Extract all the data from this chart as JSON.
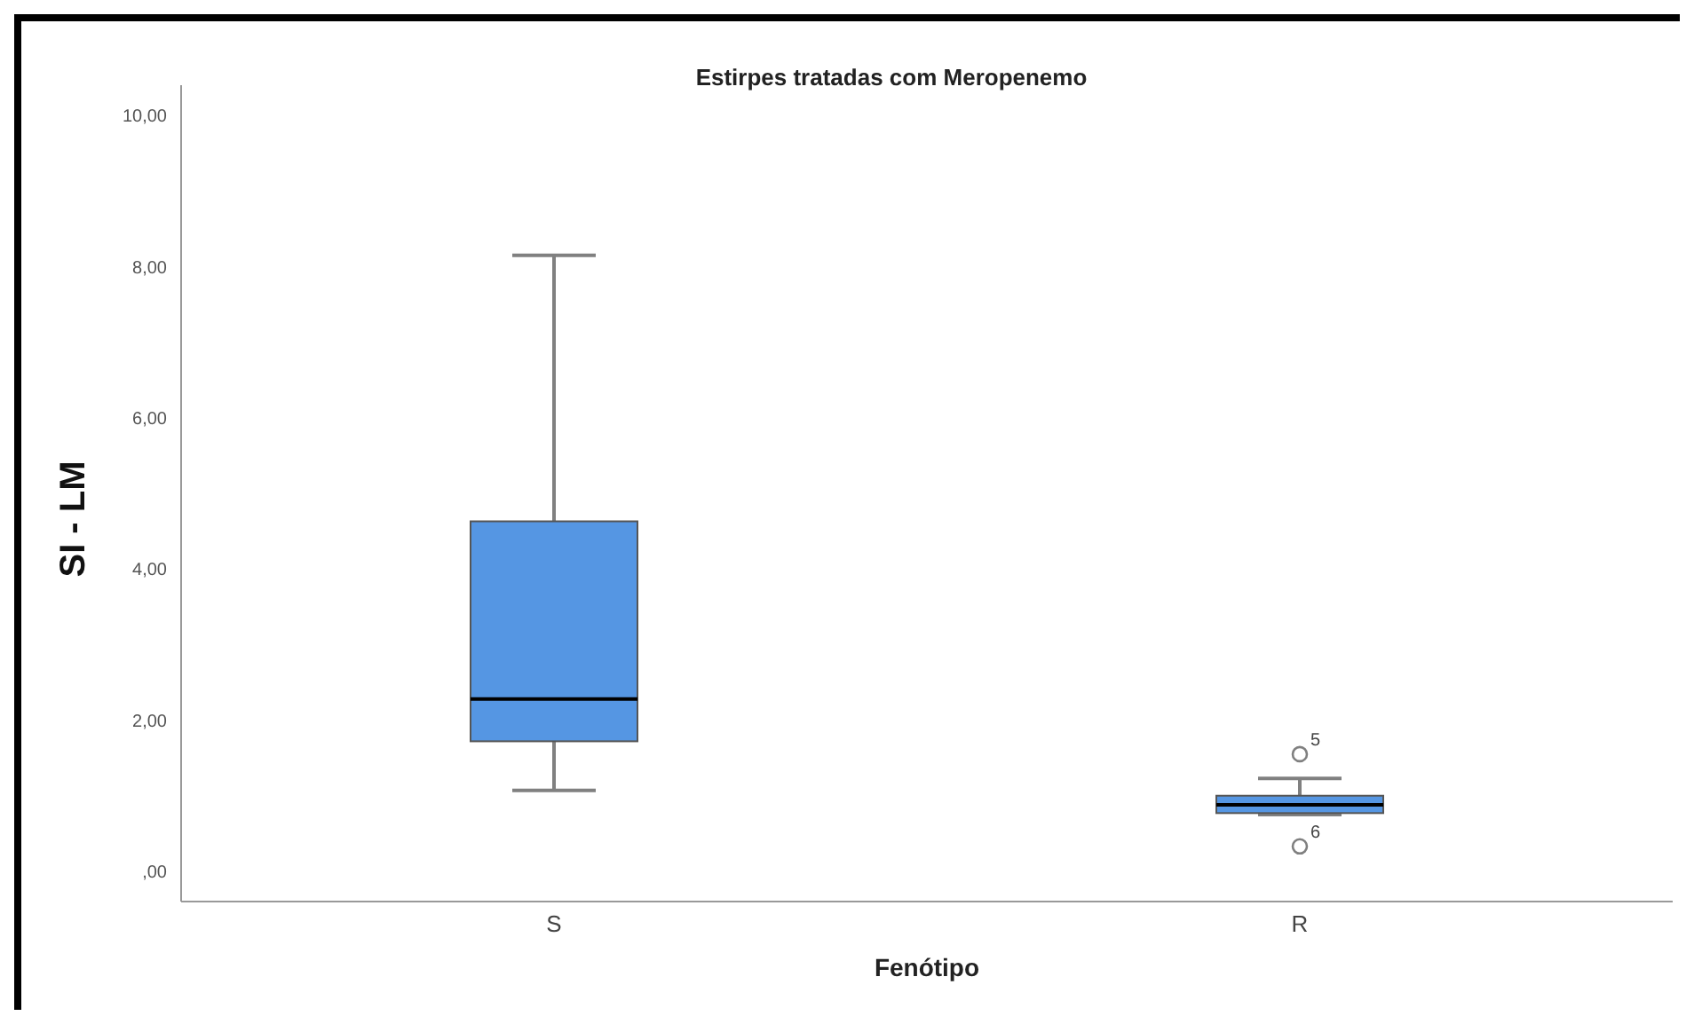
{
  "chart_data": {
    "type": "box",
    "title": "Estirpes tratadas com Meropenemo",
    "xlabel": "Fenótipo",
    "ylabel": "SI - LM",
    "categories": [
      "S",
      "R"
    ],
    "color": "#5596e3",
    "boxes": [
      {
        "low": 1.07,
        "q1": 1.72,
        "median": 2.28,
        "q3": 4.63,
        "high": 8.15
      },
      {
        "low": 0.75,
        "q1": 0.77,
        "median": 0.88,
        "q3": 1.0,
        "high": 1.23,
        "outliers": [
          1.55,
          0.33
        ]
      }
    ],
    "ylim": [
      -0.4,
      10.4
    ],
    "yticks": [
      {
        "value": 0,
        "label": ",00"
      },
      {
        "value": 2,
        "label": "2,00"
      },
      {
        "value": 4,
        "label": "4,00"
      },
      {
        "value": 6,
        "label": "6,00"
      },
      {
        "value": 8,
        "label": "8,00"
      },
      {
        "value": 10,
        "label": "10,00"
      }
    ],
    "annotations": [
      "5",
      "6"
    ]
  }
}
